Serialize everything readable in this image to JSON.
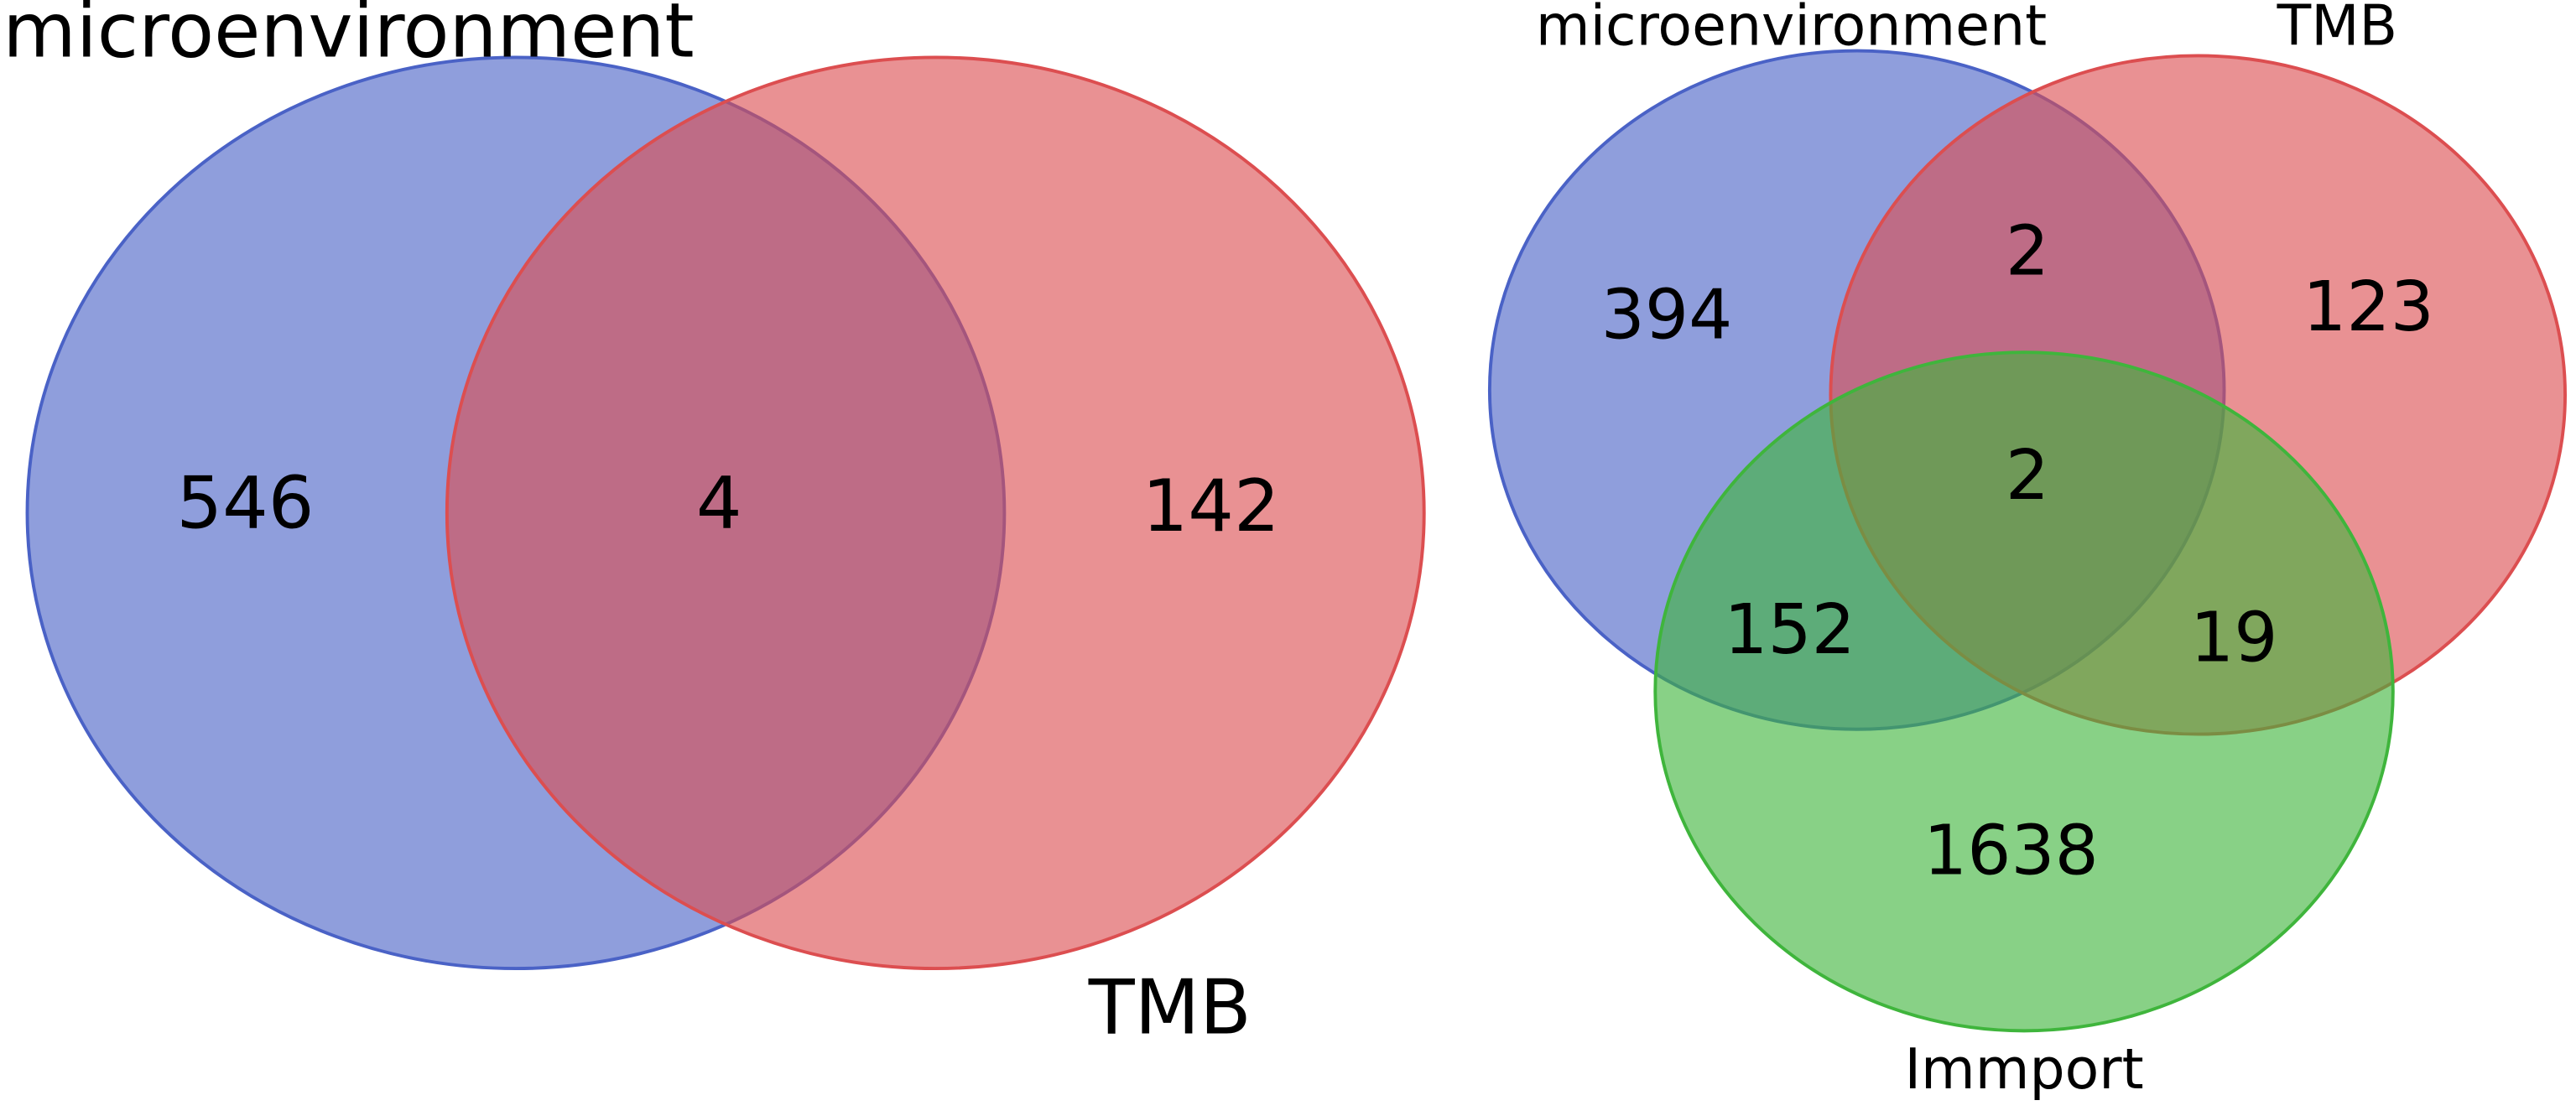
{
  "chart_data": [
    {
      "type": "venn",
      "sets": [
        {
          "name": "microenvironment",
          "color": "#4a62c6"
        },
        {
          "name": "TMB",
          "color": "#dc4e50"
        }
      ],
      "values": [
        546,
        4,
        142
      ]
    },
    {
      "type": "venn",
      "sets": [
        {
          "name": "microenvironment",
          "color": "#4a62c6"
        },
        {
          "name": "TMB",
          "color": "#dc4e50"
        },
        {
          "name": "Immport",
          "color": "#3fb53c"
        }
      ],
      "values": [
        394,
        2,
        123,
        2,
        152,
        19,
        1638
      ]
    }
  ]
}
